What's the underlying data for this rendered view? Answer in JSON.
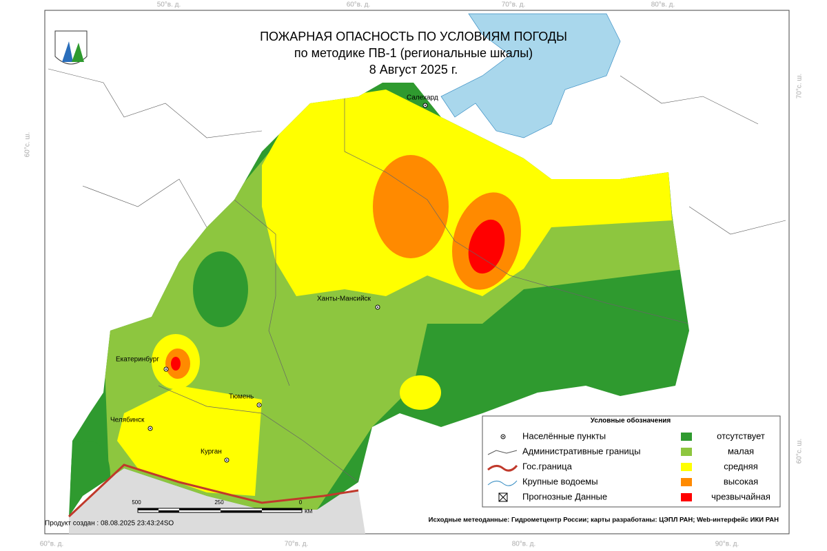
{
  "header": {
    "title_lines": [
      "ПОЖАРНАЯ ОПАСНОСТЬ ПО УСЛОВИЯМ ПОГОДЫ",
      "по методике ПВ-1 (региональные шкалы)",
      "8 Август 2025 г."
    ]
  },
  "coordinates": {
    "top": [
      "50°в. д.",
      "60°в. д.",
      "70°в. д.",
      "80°в. д."
    ],
    "bottom": [
      "60°в. д.",
      "70°в. д.",
      "80°в. д.",
      "90°в. д."
    ],
    "left": [
      "60°с. ш."
    ],
    "right": [
      "70°с. ш.",
      "60°с. ш."
    ]
  },
  "cities": [
    "Салехард",
    "Ханты-Мансийск",
    "Екатеринбург",
    "Тюмень",
    "Челябинск",
    "Курган"
  ],
  "legend": {
    "title": "Условные обозначения",
    "symbols": [
      "Населённые пункты",
      "Административные границы",
      "Гос.граница",
      "Крупные водоемы",
      "Прогнозные Данные"
    ],
    "classes": [
      {
        "label": "отсутствует",
        "color": "#2f9a2f"
      },
      {
        "label": "малая",
        "color": "#8dc63f"
      },
      {
        "label": "средняя",
        "color": "#ffff00"
      },
      {
        "label": "высокая",
        "color": "#ff8a00"
      },
      {
        "label": "чрезвычайная",
        "color": "#ff0000"
      }
    ]
  },
  "scale": {
    "labels": [
      "500",
      "250",
      "0",
      "КМ"
    ]
  },
  "footer": {
    "created": "Продукт создан : 08.08.2025 23:43:24SO",
    "source": "Исходные метеоданные: Гидрометцентр России; карты разработаны: ЦЭПЛ РАН; Web-интерфейс ИКИ РАН"
  }
}
